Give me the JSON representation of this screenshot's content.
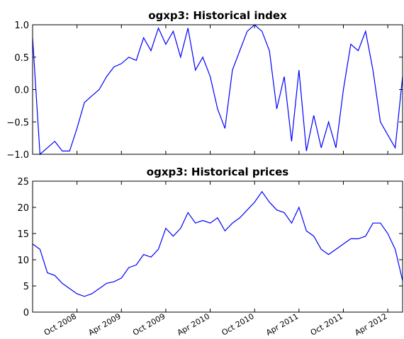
{
  "chart_data": [
    {
      "type": "line",
      "title": "ogxp3: Historical index",
      "x": [
        "2008-04",
        "2008-05",
        "2008-06",
        "2008-07",
        "2008-08",
        "2008-09",
        "2008-10",
        "2008-11",
        "2008-12",
        "2009-01",
        "2009-02",
        "2009-03",
        "2009-04",
        "2009-05",
        "2009-06",
        "2009-07",
        "2009-08",
        "2009-09",
        "2009-10",
        "2009-11",
        "2009-12",
        "2010-01",
        "2010-02",
        "2010-03",
        "2010-04",
        "2010-05",
        "2010-06",
        "2010-07",
        "2010-08",
        "2010-09",
        "2010-10",
        "2010-11",
        "2010-12",
        "2011-01",
        "2011-02",
        "2011-03",
        "2011-04",
        "2011-05",
        "2011-06",
        "2011-07",
        "2011-08",
        "2011-09",
        "2011-10",
        "2011-11",
        "2011-12",
        "2012-01",
        "2012-02",
        "2012-03",
        "2012-04",
        "2012-05",
        "2012-06"
      ],
      "series": [
        {
          "color": "#0000ff",
          "values": [
            0.8,
            -1,
            -0.9,
            -0.8,
            -0.95,
            -0.95,
            -0.6,
            -0.2,
            -0.1,
            0,
            0.2,
            0.35,
            0.4,
            0.5,
            0.45,
            0.8,
            0.6,
            0.95,
            0.7,
            0.9,
            0.5,
            0.95,
            0.3,
            0.5,
            0.2,
            -0.3,
            -0.6,
            0.3,
            0.6,
            0.9,
            1,
            0.9,
            0.6,
            -0.3,
            0.2,
            -0.8,
            0.3,
            -0.95,
            -0.4,
            -0.9,
            -0.5,
            -0.9,
            0,
            0.7,
            0.6,
            0.9,
            0.3,
            -0.5,
            -0.7,
            -0.9,
            0.2
          ]
        }
      ],
      "xlim": [
        "2008-04",
        "2012-06"
      ],
      "ylim": [
        -1,
        1
      ],
      "yticks": [
        {
          "value": -1,
          "label": "−1.0"
        },
        {
          "value": -0.5,
          "label": "−0.5"
        },
        {
          "value": 0,
          "label": "0.0"
        },
        {
          "value": 0.5,
          "label": "0.5"
        },
        {
          "value": 1,
          "label": "1.0"
        }
      ]
    },
    {
      "type": "line",
      "title": "ogxp3: Historical prices",
      "x": [
        "2008-04",
        "2008-05",
        "2008-06",
        "2008-07",
        "2008-08",
        "2008-09",
        "2008-10",
        "2008-11",
        "2008-12",
        "2009-01",
        "2009-02",
        "2009-03",
        "2009-04",
        "2009-05",
        "2009-06",
        "2009-07",
        "2009-08",
        "2009-09",
        "2009-10",
        "2009-11",
        "2009-12",
        "2010-01",
        "2010-02",
        "2010-03",
        "2010-04",
        "2010-05",
        "2010-06",
        "2010-07",
        "2010-08",
        "2010-09",
        "2010-10",
        "2010-11",
        "2010-12",
        "2011-01",
        "2011-02",
        "2011-03",
        "2011-04",
        "2011-05",
        "2011-06",
        "2011-07",
        "2011-08",
        "2011-09",
        "2011-10",
        "2011-11",
        "2011-12",
        "2012-01",
        "2012-02",
        "2012-03",
        "2012-04",
        "2012-05",
        "2012-06"
      ],
      "series": [
        {
          "color": "#0000ff",
          "values": [
            13,
            12,
            7.5,
            7,
            5.5,
            4.5,
            3.5,
            3,
            3.5,
            4.5,
            5.5,
            5.8,
            6.5,
            8.5,
            9,
            11,
            10.5,
            12,
            16,
            14.5,
            16,
            19,
            17,
            17.5,
            17,
            18,
            15.5,
            17,
            18,
            19.5,
            21,
            23,
            21,
            19.5,
            19,
            17,
            20,
            15.5,
            14.5,
            12,
            11,
            12,
            13,
            14,
            14,
            14.5,
            17,
            17,
            15,
            12,
            6
          ]
        }
      ],
      "xlim": [
        "2008-04",
        "2012-06"
      ],
      "ylim": [
        0,
        25
      ],
      "yticks": [
        0,
        5,
        10,
        15,
        20,
        25
      ],
      "xticks": [
        {
          "value": "2008-10",
          "label": "Oct 2008"
        },
        {
          "value": "2009-04",
          "label": "Apr 2009"
        },
        {
          "value": "2009-10",
          "label": "Oct 2009"
        },
        {
          "value": "2010-04",
          "label": "Apr 2010"
        },
        {
          "value": "2010-10",
          "label": "Oct 2010"
        },
        {
          "value": "2011-04",
          "label": "Apr 2011"
        },
        {
          "value": "2011-10",
          "label": "Oct 2011"
        },
        {
          "value": "2012-04",
          "label": "Apr 2012"
        }
      ]
    }
  ]
}
